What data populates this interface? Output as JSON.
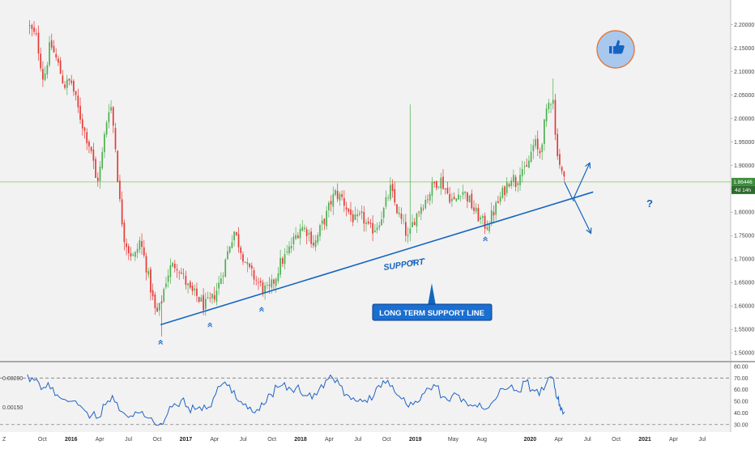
{
  "colors": {
    "background": "#f2f2f2",
    "bull": "#4caf50",
    "bear": "#e53935",
    "accent_blue": "#1565c0",
    "last_price_line": "#8bc34a",
    "rsi_line": "#1e63c4",
    "price_badge": "#3c8d3c",
    "countdown_badge": "#2e6b2e"
  },
  "icons": {
    "like": "thumbs-up-icon",
    "bounce_marker": "double-chevron-up-icon"
  },
  "price_axis": {
    "labels": [
      "2.20000",
      "2.15000",
      "2.10000",
      "2.05000",
      "2.00000",
      "1.95000",
      "1.90000",
      "1.85000",
      "1.80000",
      "1.75000",
      "1.70000",
      "1.65000",
      "1.60000",
      "1.55000",
      "1.50000"
    ],
    "ylim": [
      1.49,
      2.235
    ]
  },
  "rsi_axis": {
    "right_labels": [
      "80.00",
      "70.00",
      "60.00",
      "50.00",
      "40.00",
      "30.00"
    ],
    "left_labels": [
      "0.00200",
      "0.00150"
    ],
    "levels": [
      70,
      30
    ],
    "ylim": [
      25,
      82
    ]
  },
  "time_axis": {
    "labels": [
      {
        "t": 2015.75,
        "text": "Oct",
        "bold": false
      },
      {
        "t": 2016.0,
        "text": "2016",
        "bold": true
      },
      {
        "t": 2016.25,
        "text": "Apr",
        "bold": false
      },
      {
        "t": 2016.5,
        "text": "Jul",
        "bold": false
      },
      {
        "t": 2016.75,
        "text": "Oct",
        "bold": false
      },
      {
        "t": 2017.0,
        "text": "2017",
        "bold": true
      },
      {
        "t": 2017.25,
        "text": "Apr",
        "bold": false
      },
      {
        "t": 2017.5,
        "text": "Jul",
        "bold": false
      },
      {
        "t": 2017.75,
        "text": "Oct",
        "bold": false
      },
      {
        "t": 2018.0,
        "text": "2018",
        "bold": true
      },
      {
        "t": 2018.25,
        "text": "Apr",
        "bold": false
      },
      {
        "t": 2018.5,
        "text": "Jul",
        "bold": false
      },
      {
        "t": 2018.75,
        "text": "Oct",
        "bold": false
      },
      {
        "t": 2019.0,
        "text": "2019",
        "bold": true
      },
      {
        "t": 2019.33,
        "text": "May",
        "bold": false
      },
      {
        "t": 2019.58,
        "text": "Aug",
        "bold": false
      },
      {
        "t": 2020.0,
        "text": "2020",
        "bold": true
      },
      {
        "t": 2020.25,
        "text": "Apr",
        "bold": false
      },
      {
        "t": 2020.5,
        "text": "Jul",
        "bold": false
      },
      {
        "t": 2020.75,
        "text": "Oct",
        "bold": false
      },
      {
        "t": 2021.0,
        "text": "2021",
        "bold": true
      },
      {
        "t": 2021.25,
        "text": "Apr",
        "bold": false
      },
      {
        "t": 2021.5,
        "text": "Jul",
        "bold": false
      }
    ]
  },
  "last_price": {
    "value": 1.86446,
    "label": "1.86446",
    "countdown": "4d 14h"
  },
  "annotations": {
    "support_label": "SUPPORT",
    "long_term_callout": "LONG TERM SUPPORT LINE",
    "question_mark": "?",
    "corner_symbol": "Z"
  },
  "chart_data": {
    "type": "candlestick",
    "series_name": "",
    "x_unit": "year",
    "close_path": [
      [
        2015.62,
        2.2
      ],
      [
        2015.7,
        2.17
      ],
      [
        2015.76,
        2.08
      ],
      [
        2015.82,
        2.16
      ],
      [
        2015.88,
        2.12
      ],
      [
        2015.94,
        2.07
      ],
      [
        2016.0,
        2.08
      ],
      [
        2016.06,
        2.02
      ],
      [
        2016.12,
        1.97
      ],
      [
        2016.18,
        1.93
      ],
      [
        2016.22,
        1.86
      ],
      [
        2016.26,
        1.9
      ],
      [
        2016.3,
        1.98
      ],
      [
        2016.34,
        2.04
      ],
      [
        2016.38,
        1.96
      ],
      [
        2016.42,
        1.83
      ],
      [
        2016.46,
        1.75
      ],
      [
        2016.5,
        1.72
      ],
      [
        2016.55,
        1.7
      ],
      [
        2016.6,
        1.74
      ],
      [
        2016.65,
        1.69
      ],
      [
        2016.7,
        1.63
      ],
      [
        2016.74,
        1.58
      ],
      [
        2016.78,
        1.6
      ],
      [
        2016.82,
        1.65
      ],
      [
        2016.86,
        1.68
      ],
      [
        2016.92,
        1.69
      ],
      [
        2016.98,
        1.66
      ],
      [
        2017.04,
        1.63
      ],
      [
        2017.1,
        1.62
      ],
      [
        2017.16,
        1.6
      ],
      [
        2017.22,
        1.61
      ],
      [
        2017.28,
        1.64
      ],
      [
        2017.34,
        1.69
      ],
      [
        2017.38,
        1.73
      ],
      [
        2017.42,
        1.76
      ],
      [
        2017.48,
        1.72
      ],
      [
        2017.54,
        1.68
      ],
      [
        2017.6,
        1.66
      ],
      [
        2017.66,
        1.64
      ],
      [
        2017.72,
        1.63
      ],
      [
        2017.78,
        1.66
      ],
      [
        2017.82,
        1.69
      ],
      [
        2017.88,
        1.71
      ],
      [
        2017.94,
        1.74
      ],
      [
        2018.0,
        1.77
      ],
      [
        2018.06,
        1.76
      ],
      [
        2018.12,
        1.73
      ],
      [
        2018.18,
        1.77
      ],
      [
        2018.22,
        1.79
      ],
      [
        2018.26,
        1.82
      ],
      [
        2018.3,
        1.84
      ],
      [
        2018.36,
        1.83
      ],
      [
        2018.42,
        1.8
      ],
      [
        2018.48,
        1.78
      ],
      [
        2018.54,
        1.79
      ],
      [
        2018.6,
        1.76
      ],
      [
        2018.66,
        1.77
      ],
      [
        2018.72,
        1.8
      ],
      [
        2018.78,
        1.85
      ],
      [
        2018.82,
        1.82
      ],
      [
        2018.86,
        1.79
      ],
      [
        2018.9,
        1.77
      ],
      [
        2018.94,
        1.74
      ],
      [
        2018.98,
        1.78
      ],
      [
        2019.04,
        1.81
      ],
      [
        2019.1,
        1.83
      ],
      [
        2019.16,
        1.86
      ],
      [
        2019.22,
        1.87
      ],
      [
        2019.28,
        1.84
      ],
      [
        2019.34,
        1.82
      ],
      [
        2019.4,
        1.85
      ],
      [
        2019.46,
        1.83
      ],
      [
        2019.52,
        1.8
      ],
      [
        2019.58,
        1.78
      ],
      [
        2019.62,
        1.77
      ],
      [
        2019.66,
        1.79
      ],
      [
        2019.72,
        1.82
      ],
      [
        2019.78,
        1.85
      ],
      [
        2019.84,
        1.88
      ],
      [
        2019.88,
        1.86
      ],
      [
        2019.92,
        1.9
      ],
      [
        2019.96,
        1.88
      ],
      [
        2020.0,
        1.92
      ],
      [
        2020.04,
        1.95
      ],
      [
        2020.08,
        1.92
      ],
      [
        2020.12,
        1.98
      ],
      [
        2020.16,
        2.03
      ],
      [
        2020.2,
        2.05
      ],
      [
        2020.22,
        1.96
      ],
      [
        2020.24,
        1.93
      ],
      [
        2020.26,
        1.9
      ],
      [
        2020.28,
        1.88
      ],
      [
        2020.3,
        1.864
      ]
    ],
    "extremes": {
      "high": {
        "t": 2015.62,
        "value": 2.2
      },
      "low": {
        "t": 2016.78,
        "value": 1.535
      },
      "wick_spike": {
        "t": 2018.96,
        "value": 2.03
      },
      "recent_high": {
        "t": 2020.2,
        "value": 2.085
      }
    },
    "support_line": {
      "start": {
        "t": 2016.78,
        "value": 1.56
      },
      "end": {
        "t": 2020.55,
        "value": 1.843
      }
    },
    "bounce_points": [
      {
        "t": 2016.78,
        "value": 1.545
      },
      {
        "t": 2017.21,
        "value": 1.582
      },
      {
        "t": 2017.66,
        "value": 1.615
      },
      {
        "t": 2018.98,
        "value": 1.716
      },
      {
        "t": 2019.61,
        "value": 1.765
      }
    ],
    "scenario_arrows": [
      {
        "name": "up",
        "from": {
          "t": 2020.38,
          "value": 1.83
        },
        "to": {
          "t": 2020.52,
          "value": 1.905
        }
      },
      {
        "name": "down",
        "from": {
          "t": 2020.38,
          "value": 1.83
        },
        "to": {
          "t": 2020.53,
          "value": 1.755
        }
      }
    ],
    "rsi": {
      "period": 14,
      "levels": [
        70,
        30
      ],
      "points": [
        [
          2015.62,
          73
        ],
        [
          2015.68,
          68
        ],
        [
          2015.74,
          60
        ],
        [
          2015.8,
          66
        ],
        [
          2015.86,
          55
        ],
        [
          2015.92,
          52
        ],
        [
          2016.0,
          50
        ],
        [
          2016.06,
          47
        ],
        [
          2016.12,
          42
        ],
        [
          2016.18,
          38
        ],
        [
          2016.24,
          36
        ],
        [
          2016.3,
          47
        ],
        [
          2016.36,
          55
        ],
        [
          2016.42,
          42
        ],
        [
          2016.48,
          38
        ],
        [
          2016.54,
          37
        ],
        [
          2016.6,
          40
        ],
        [
          2016.66,
          36
        ],
        [
          2016.72,
          32
        ],
        [
          2016.78,
          31
        ],
        [
          2016.84,
          39
        ],
        [
          2016.9,
          48
        ],
        [
          2016.96,
          51
        ],
        [
          2017.02,
          45
        ],
        [
          2017.08,
          43
        ],
        [
          2017.14,
          42
        ],
        [
          2017.2,
          45
        ],
        [
          2017.26,
          56
        ],
        [
          2017.32,
          65
        ],
        [
          2017.38,
          64
        ],
        [
          2017.44,
          52
        ],
        [
          2017.5,
          47
        ],
        [
          2017.56,
          45
        ],
        [
          2017.62,
          43
        ],
        [
          2017.68,
          47
        ],
        [
          2017.74,
          56
        ],
        [
          2017.8,
          62
        ],
        [
          2017.86,
          66
        ],
        [
          2017.92,
          60
        ],
        [
          2017.98,
          64
        ],
        [
          2018.04,
          55
        ],
        [
          2018.1,
          52
        ],
        [
          2018.16,
          60
        ],
        [
          2018.22,
          68
        ],
        [
          2018.28,
          70
        ],
        [
          2018.34,
          64
        ],
        [
          2018.4,
          56
        ],
        [
          2018.46,
          53
        ],
        [
          2018.52,
          52
        ],
        [
          2018.58,
          49
        ],
        [
          2018.64,
          55
        ],
        [
          2018.7,
          62
        ],
        [
          2018.76,
          68
        ],
        [
          2018.82,
          58
        ],
        [
          2018.88,
          52
        ],
        [
          2018.94,
          45
        ],
        [
          2019.0,
          50
        ],
        [
          2019.06,
          56
        ],
        [
          2019.12,
          61
        ],
        [
          2019.18,
          63
        ],
        [
          2019.24,
          54
        ],
        [
          2019.3,
          50
        ],
        [
          2019.36,
          56
        ],
        [
          2019.42,
          52
        ],
        [
          2019.48,
          47
        ],
        [
          2019.54,
          45
        ],
        [
          2019.6,
          43
        ],
        [
          2019.66,
          48
        ],
        [
          2019.72,
          55
        ],
        [
          2019.78,
          60
        ],
        [
          2019.84,
          64
        ],
        [
          2019.9,
          58
        ],
        [
          2019.96,
          67
        ],
        [
          2020.02,
          60
        ],
        [
          2020.08,
          55
        ],
        [
          2020.14,
          65
        ],
        [
          2020.2,
          70
        ],
        [
          2020.22,
          60
        ],
        [
          2020.24,
          52
        ],
        [
          2020.26,
          47
        ],
        [
          2020.28,
          43
        ],
        [
          2020.3,
          41
        ]
      ]
    }
  }
}
